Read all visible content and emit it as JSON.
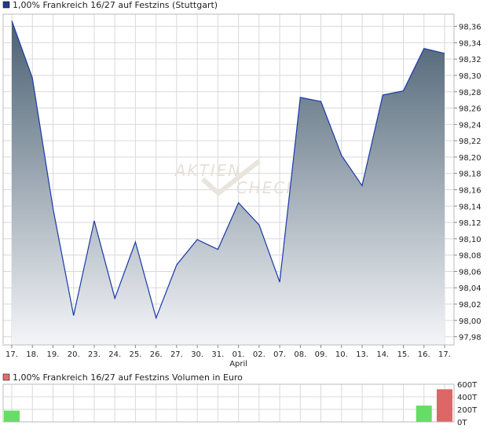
{
  "price_legend": {
    "label": "1,00% Frankreich 16/27 auf Festzins (Stuttgart)",
    "color": "#1f3d8c"
  },
  "volume_legend": {
    "label": "1,00% Frankreich 16/27 auf Festzins Volumen in Euro",
    "color": "#e07070"
  },
  "watermark": "AKTIENCHECK",
  "colors": {
    "area_top": "#4a6072",
    "area_bottom": "#f4f5f8",
    "line": "#1a3aa8",
    "grid": "#d9d9d9",
    "volume_up": "#66dd66",
    "volume_down": "#dd6666"
  },
  "chart_data": [
    {
      "type": "area",
      "categories": [
        "17.",
        "18.",
        "19.",
        "20.",
        "23.",
        "24.",
        "25.",
        "26.",
        "27.",
        "30.",
        "31.",
        "01.",
        "02.",
        "07.",
        "08.",
        "09.",
        "10.",
        "13.",
        "14.",
        "15.",
        "16.",
        "17."
      ],
      "month_label": {
        "text": "April",
        "at_category_index": 11
      },
      "values": [
        98.367,
        98.297,
        98.137,
        98.006,
        98.122,
        98.027,
        98.096,
        98.003,
        98.068,
        98.099,
        98.087,
        98.144,
        98.117,
        98.047,
        98.273,
        98.268,
        98.202,
        98.165,
        98.276,
        98.281,
        98.333,
        98.327
      ],
      "yticks": [
        "98,36",
        "98,34",
        "98,32",
        "98,30",
        "98,28",
        "98,26",
        "98,24",
        "98,22",
        "98,20",
        "98,18",
        "98,16",
        "98,14",
        "98,12",
        "98,10",
        "98,08",
        "98,06",
        "98,04",
        "98,02",
        "98,00",
        "97,98"
      ],
      "ylim": [
        97.97,
        98.375
      ],
      "grid": true
    },
    {
      "type": "bar",
      "categories": [
        "17.",
        "18.",
        "19.",
        "20.",
        "23.",
        "24.",
        "25.",
        "26.",
        "27.",
        "30.",
        "31.",
        "01.",
        "02.",
        "07.",
        "08.",
        "09.",
        "10.",
        "13.",
        "14.",
        "15.",
        "16.",
        "17."
      ],
      "values": [
        180,
        0,
        0,
        0,
        0,
        0,
        0,
        0,
        0,
        0,
        0,
        0,
        0,
        0,
        0,
        0,
        0,
        0,
        0,
        0,
        260,
        520
      ],
      "directions": [
        "up",
        null,
        null,
        null,
        null,
        null,
        null,
        null,
        null,
        null,
        null,
        null,
        null,
        null,
        null,
        null,
        null,
        null,
        null,
        null,
        "up",
        "down"
      ],
      "yticks": [
        "600T",
        "400T",
        "200T",
        "0T"
      ],
      "ylim": [
        0,
        600
      ],
      "grid": true
    }
  ]
}
